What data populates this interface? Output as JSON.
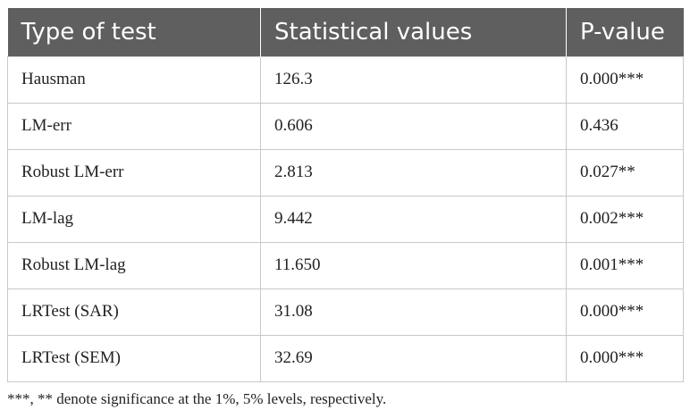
{
  "table": {
    "headers": [
      "Type of test",
      "Statistical values",
      "P-value"
    ],
    "rows": [
      [
        "Hausman",
        "126.3",
        "0.000***"
      ],
      [
        "LM-err",
        "0.606",
        "0.436"
      ],
      [
        "Robust LM-err",
        "2.813",
        "0.027**"
      ],
      [
        "LM-lag",
        "9.442",
        "0.002***"
      ],
      [
        "Robust LM-lag",
        "11.650",
        "0.001***"
      ],
      [
        "LRTest (SAR)",
        "31.08",
        "0.000***"
      ],
      [
        "LRTest (SEM)",
        "32.69",
        "0.000***"
      ]
    ]
  },
  "footnote": "***, ** denote significance at the 1%, 5% levels, respectively.",
  "colors": {
    "header_bg": "#5f5f5f",
    "header_text": "#ffffff",
    "border": "#c8c8c8",
    "body_text": "#222222"
  }
}
